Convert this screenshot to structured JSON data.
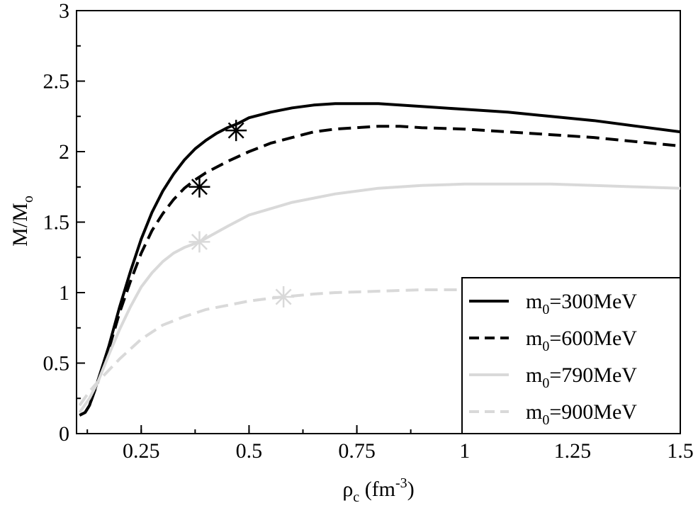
{
  "chart_data": {
    "type": "line",
    "xlabel": {
      "main": "ρ",
      "sub": "c",
      "unit_open": " (fm",
      "sup": "-3",
      "unit_close": ")"
    },
    "ylabel": {
      "main": "M/M",
      "sub": "o"
    },
    "xlim": [
      0.1,
      1.5
    ],
    "ylim": [
      0,
      3
    ],
    "xticks": [
      {
        "value": 0.25,
        "label": "0.25"
      },
      {
        "value": 0.5,
        "label": "0.5"
      },
      {
        "value": 0.75,
        "label": "0.75"
      },
      {
        "value": 1.0,
        "label": "1"
      },
      {
        "value": 1.25,
        "label": "1.25"
      },
      {
        "value": 1.5,
        "label": "1.5"
      }
    ],
    "yticks": [
      {
        "value": 0,
        "label": "0"
      },
      {
        "value": 0.5,
        "label": "0.5"
      },
      {
        "value": 1.0,
        "label": "1"
      },
      {
        "value": 1.5,
        "label": "1.5"
      },
      {
        "value": 2.0,
        "label": "2"
      },
      {
        "value": 2.5,
        "label": "2.5"
      },
      {
        "value": 3.0,
        "label": "3"
      }
    ],
    "grid": false,
    "legend_position": "bottom-right",
    "series": [
      {
        "name_main": "m",
        "name_sub": "0",
        "name_rest": "=300MeV",
        "color": "#000000",
        "dash": "solid",
        "x": [
          0.107,
          0.12,
          0.13,
          0.15,
          0.175,
          0.2,
          0.225,
          0.25,
          0.275,
          0.3,
          0.325,
          0.35,
          0.375,
          0.4,
          0.425,
          0.45,
          0.475,
          0.5,
          0.55,
          0.6,
          0.65,
          0.7,
          0.75,
          0.8,
          0.85,
          0.9,
          1.0,
          1.1,
          1.2,
          1.3,
          1.4,
          1.5
        ],
        "y": [
          0.13,
          0.15,
          0.2,
          0.38,
          0.62,
          0.9,
          1.15,
          1.38,
          1.57,
          1.72,
          1.84,
          1.94,
          2.02,
          2.08,
          2.13,
          2.17,
          2.2,
          2.24,
          2.28,
          2.31,
          2.33,
          2.34,
          2.34,
          2.34,
          2.33,
          2.32,
          2.3,
          2.28,
          2.25,
          2.22,
          2.18,
          2.14
        ],
        "marker": {
          "x": 0.47,
          "y": 2.15
        }
      },
      {
        "name_main": "m",
        "name_sub": "0",
        "name_rest": "=600MeV",
        "color": "#000000",
        "dash": "dashed",
        "x": [
          0.107,
          0.12,
          0.13,
          0.15,
          0.175,
          0.2,
          0.225,
          0.25,
          0.275,
          0.3,
          0.325,
          0.35,
          0.375,
          0.4,
          0.45,
          0.5,
          0.55,
          0.6,
          0.65,
          0.7,
          0.75,
          0.8,
          0.85,
          0.9,
          1.0,
          1.1,
          1.2,
          1.3,
          1.4,
          1.5
        ],
        "y": [
          0.13,
          0.15,
          0.2,
          0.37,
          0.6,
          0.86,
          1.08,
          1.28,
          1.44,
          1.56,
          1.66,
          1.74,
          1.8,
          1.85,
          1.93,
          2.0,
          2.06,
          2.1,
          2.14,
          2.16,
          2.17,
          2.18,
          2.18,
          2.17,
          2.16,
          2.14,
          2.12,
          2.1,
          2.07,
          2.04
        ],
        "marker": {
          "x": 0.385,
          "y": 1.75
        }
      },
      {
        "name_main": "m",
        "name_sub": "0",
        "name_rest": "=790MeV",
        "color": "#d9d9d9",
        "dash": "solid",
        "x": [
          0.107,
          0.13,
          0.15,
          0.175,
          0.2,
          0.225,
          0.25,
          0.275,
          0.3,
          0.325,
          0.35,
          0.385,
          0.45,
          0.5,
          0.6,
          0.7,
          0.8,
          0.9,
          1.0,
          1.1,
          1.2,
          1.3,
          1.4,
          1.5
        ],
        "y": [
          0.15,
          0.25,
          0.37,
          0.56,
          0.74,
          0.9,
          1.04,
          1.14,
          1.22,
          1.28,
          1.32,
          1.36,
          1.47,
          1.55,
          1.64,
          1.7,
          1.74,
          1.76,
          1.77,
          1.77,
          1.77,
          1.76,
          1.75,
          1.74
        ],
        "marker": {
          "x": 0.385,
          "y": 1.36
        }
      },
      {
        "name_main": "m",
        "name_sub": "0",
        "name_rest": "=900MeV",
        "color": "#d9d9d9",
        "dash": "dashed",
        "x": [
          0.107,
          0.13,
          0.15,
          0.175,
          0.2,
          0.25,
          0.3,
          0.35,
          0.4,
          0.45,
          0.5,
          0.55,
          0.58,
          0.65,
          0.7,
          0.8,
          0.9,
          1.0,
          1.05
        ],
        "y": [
          0.2,
          0.3,
          0.37,
          0.45,
          0.53,
          0.67,
          0.77,
          0.83,
          0.88,
          0.91,
          0.94,
          0.96,
          0.97,
          0.99,
          1.0,
          1.01,
          1.02,
          1.02,
          1.03
        ],
        "marker": {
          "x": 0.58,
          "y": 0.97
        }
      }
    ]
  }
}
